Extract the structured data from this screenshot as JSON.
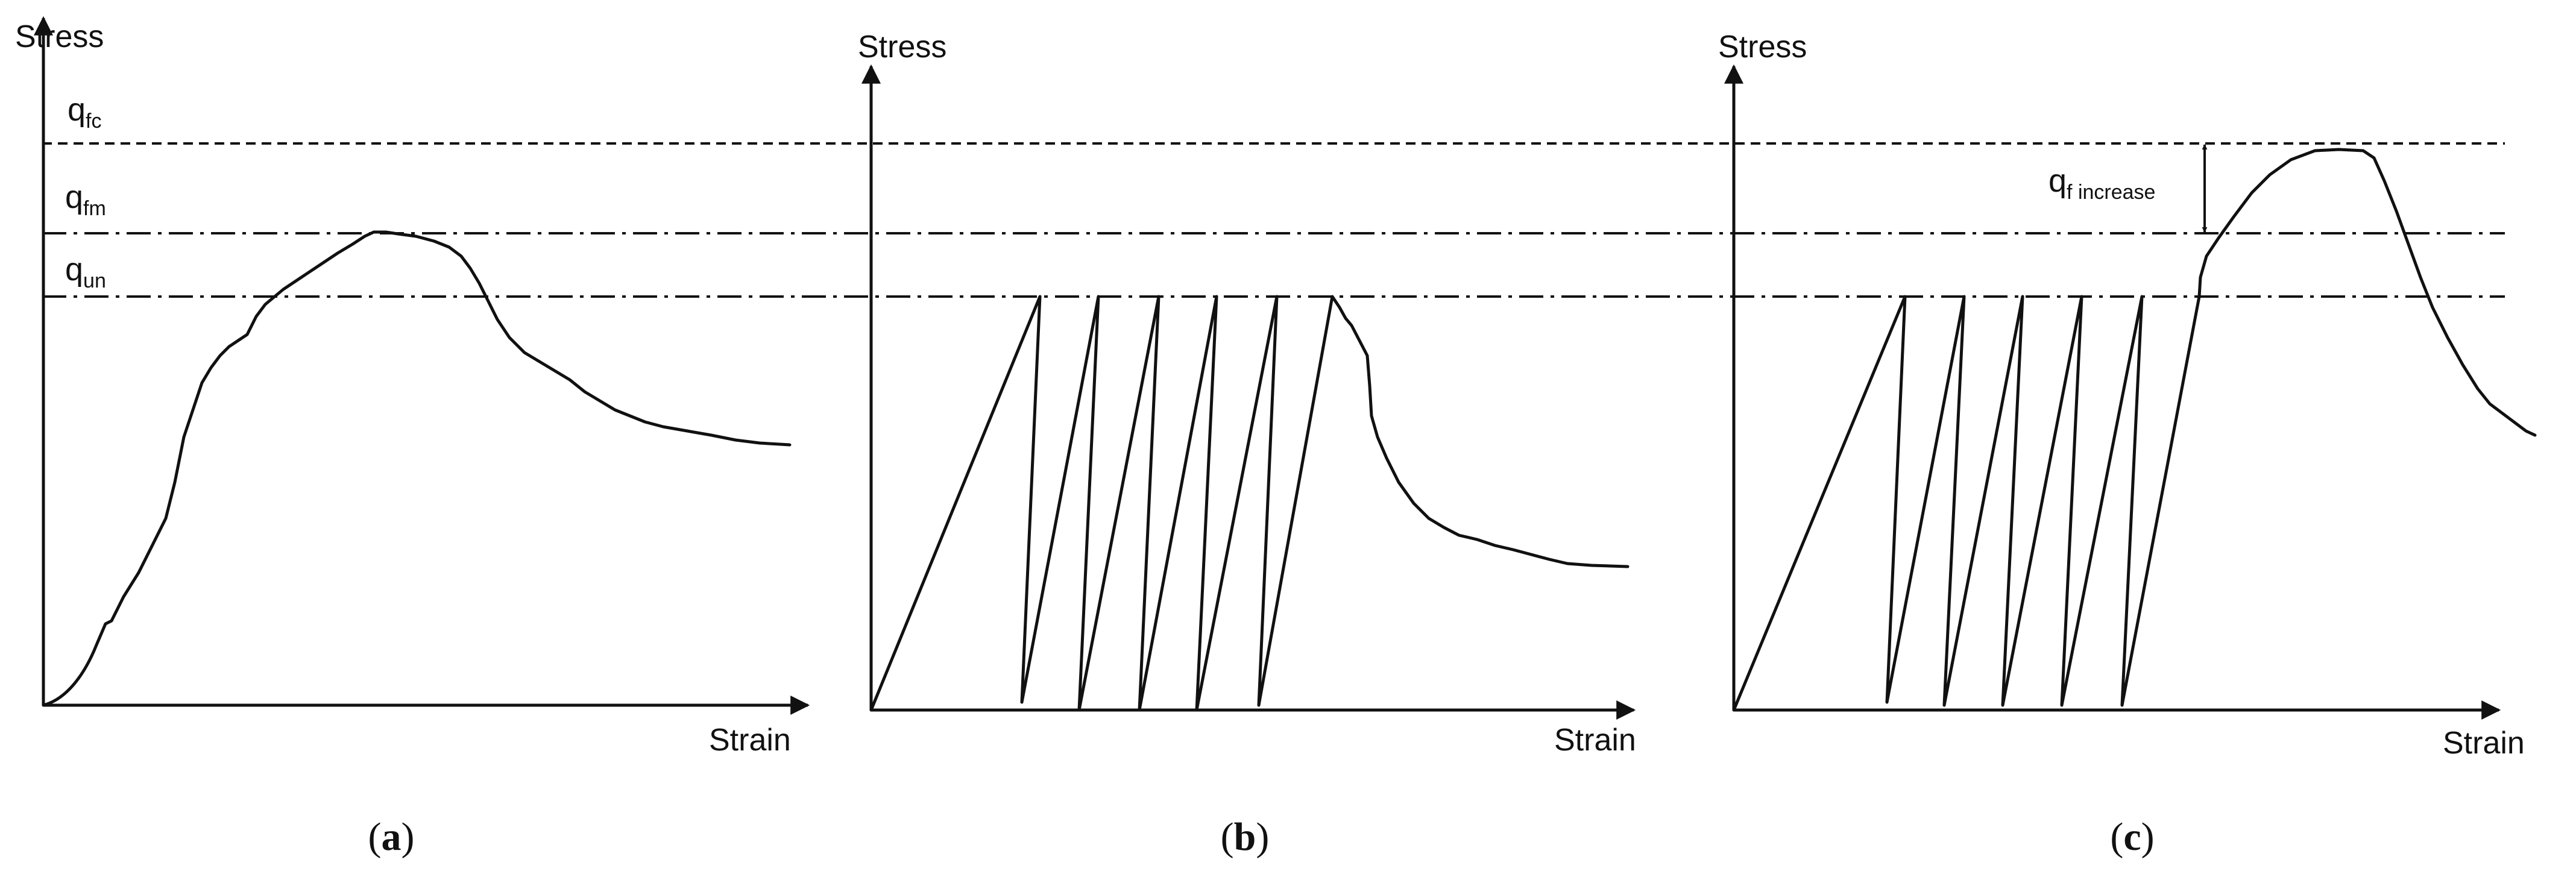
{
  "reference_levels": {
    "q_fc": {
      "base": "q",
      "sub": "fc"
    },
    "q_fm": {
      "base": "q",
      "sub": "fm"
    },
    "q_un": {
      "base": "q",
      "sub": "un"
    }
  },
  "increase_label": {
    "base": "q",
    "sub": "f increase"
  },
  "panels": [
    {
      "id": "a",
      "y_label": "Stress",
      "x_label": "Strain",
      "caption_open": "(",
      "caption_letter": "a",
      "caption_close": ")"
    },
    {
      "id": "b",
      "y_label": "Stress",
      "x_label": "Strain",
      "caption_open": "(",
      "caption_letter": "b",
      "caption_close": ")"
    },
    {
      "id": "c",
      "y_label": "Stress",
      "x_label": "Strain",
      "caption_open": "(",
      "caption_letter": "c",
      "caption_close": ")"
    }
  ]
}
